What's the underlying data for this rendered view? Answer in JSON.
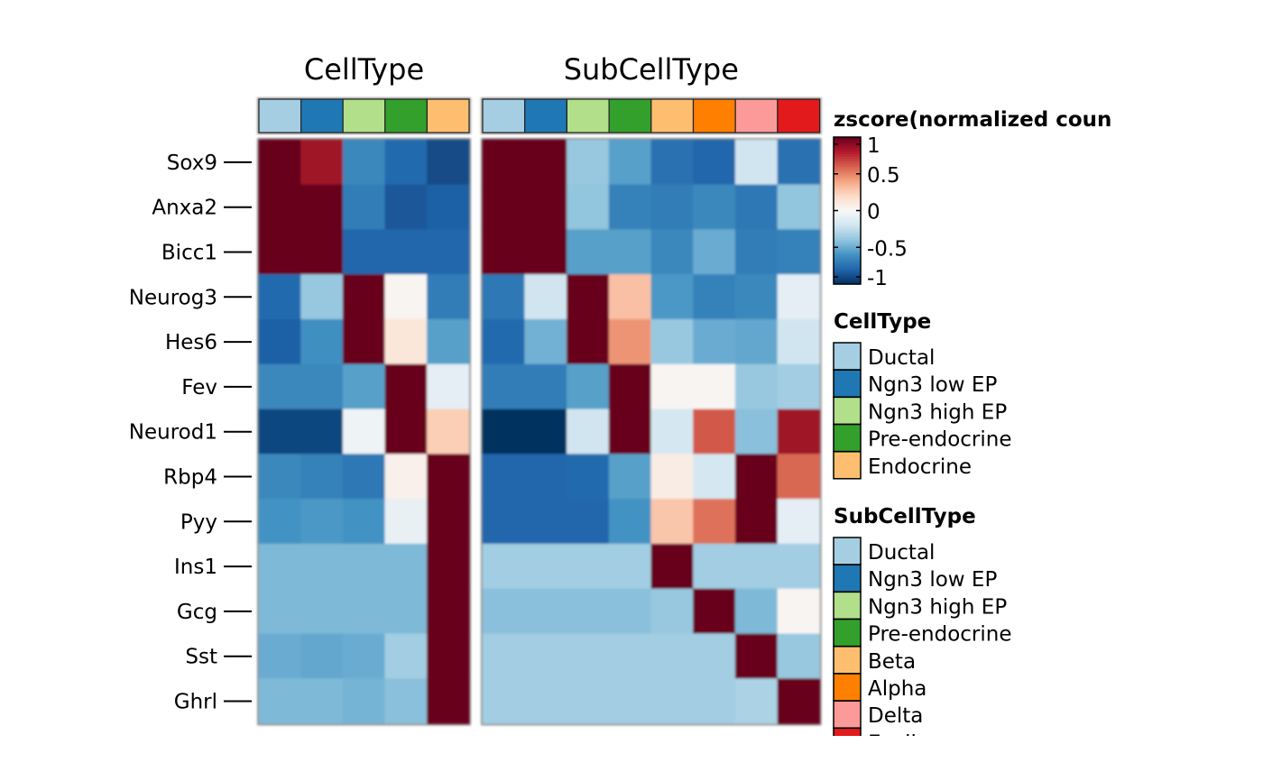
{
  "chart_data": {
    "type": "heatmap",
    "rows": [
      "Sox9",
      "Anxa2",
      "Bicc1",
      "Neurog3",
      "Hes6",
      "Fev",
      "Neurod1",
      "Rbp4",
      "Pyy",
      "Ins1",
      "Gcg",
      "Sst",
      "Ghrl"
    ],
    "color_scale": {
      "title": "zscore(normalized coun",
      "min": -1,
      "max": 1,
      "ticks": [
        "1",
        "0.5",
        "0",
        "-0.5",
        "-1"
      ],
      "tick_values": [
        1,
        0.5,
        0,
        -0.5,
        -1
      ],
      "colors": [
        "#053061",
        "#2166ac",
        "#4393c3",
        "#92c5de",
        "#d1e5f0",
        "#f7f7f7",
        "#fddbc7",
        "#f4a582",
        "#d6604d",
        "#b2182b",
        "#67001f"
      ]
    },
    "panels": [
      {
        "title": "CellType",
        "columns": [
          "Ductal",
          "Ngn3 low EP",
          "Ngn3 high EP",
          "Pre-endocrine",
          "Endocrine"
        ],
        "annotation_colors": [
          "#a6cee3",
          "#1f78b4",
          "#b2df8a",
          "#33a02c",
          "#fdbf6f"
        ],
        "values": [
          [
            1.0,
            0.85,
            -0.65,
            -0.78,
            -0.9
          ],
          [
            1.0,
            1.0,
            -0.7,
            -0.85,
            -0.82
          ],
          [
            1.0,
            1.0,
            -0.8,
            -0.8,
            -0.8
          ],
          [
            -0.78,
            -0.38,
            1.0,
            0.02,
            -0.7
          ],
          [
            -0.82,
            -0.62,
            1.0,
            0.12,
            -0.55
          ],
          [
            -0.65,
            -0.65,
            -0.55,
            1.0,
            -0.1
          ],
          [
            -0.92,
            -0.92,
            -0.05,
            1.0,
            0.25
          ],
          [
            -0.65,
            -0.68,
            -0.72,
            0.05,
            1.0
          ],
          [
            -0.6,
            -0.58,
            -0.6,
            -0.08,
            1.0
          ],
          [
            -0.45,
            -0.45,
            -0.45,
            -0.45,
            1.0
          ],
          [
            -0.45,
            -0.45,
            -0.45,
            -0.45,
            1.0
          ],
          [
            -0.5,
            -0.52,
            -0.5,
            -0.35,
            1.0
          ],
          [
            -0.45,
            -0.45,
            -0.47,
            -0.42,
            1.0
          ]
        ]
      },
      {
        "title": "SubCellType",
        "columns": [
          "Ductal",
          "Ngn3 low EP",
          "Ngn3 high EP",
          "Pre-endocrine",
          "Beta",
          "Alpha",
          "Delta",
          "Epsilon"
        ],
        "annotation_colors": [
          "#a6cee3",
          "#1f78b4",
          "#b2df8a",
          "#33a02c",
          "#fdbf6f",
          "#ff7f00",
          "#fb9a99",
          "#e31a1c"
        ],
        "values": [
          [
            1.0,
            1.0,
            -0.38,
            -0.55,
            -0.75,
            -0.8,
            -0.2,
            -0.75
          ],
          [
            1.0,
            1.0,
            -0.4,
            -0.68,
            -0.7,
            -0.65,
            -0.72,
            -0.4
          ],
          [
            1.0,
            1.0,
            -0.55,
            -0.55,
            -0.65,
            -0.5,
            -0.7,
            -0.68
          ],
          [
            -0.72,
            -0.2,
            1.0,
            0.3,
            -0.58,
            -0.68,
            -0.65,
            -0.1
          ],
          [
            -0.78,
            -0.48,
            1.0,
            0.45,
            -0.38,
            -0.5,
            -0.52,
            -0.2
          ],
          [
            -0.7,
            -0.7,
            -0.55,
            1.0,
            0.02,
            0.02,
            -0.38,
            -0.35
          ],
          [
            -1.0,
            -1.0,
            -0.2,
            1.0,
            -0.18,
            0.62,
            -0.42,
            0.85
          ],
          [
            -0.8,
            -0.8,
            -0.78,
            -0.55,
            0.08,
            -0.18,
            1.0,
            0.58
          ],
          [
            -0.8,
            -0.8,
            -0.8,
            -0.6,
            0.28,
            0.55,
            1.0,
            -0.1
          ],
          [
            -0.35,
            -0.35,
            -0.35,
            -0.35,
            1.0,
            -0.35,
            -0.35,
            -0.35
          ],
          [
            -0.42,
            -0.42,
            -0.42,
            -0.42,
            -0.38,
            1.0,
            -0.45,
            0.02
          ],
          [
            -0.35,
            -0.35,
            -0.35,
            -0.35,
            -0.35,
            -0.35,
            1.0,
            -0.38
          ],
          [
            -0.35,
            -0.35,
            -0.35,
            -0.35,
            -0.35,
            -0.35,
            -0.32,
            1.0
          ]
        ]
      }
    ],
    "legends": [
      {
        "title": "CellType",
        "entries": [
          {
            "label": "Ductal",
            "color": "#a6cee3"
          },
          {
            "label": "Ngn3 low EP",
            "color": "#1f78b4"
          },
          {
            "label": "Ngn3 high EP",
            "color": "#b2df8a"
          },
          {
            "label": "Pre-endocrine",
            "color": "#33a02c"
          },
          {
            "label": "Endocrine",
            "color": "#fdbf6f"
          }
        ]
      },
      {
        "title": "SubCellType",
        "entries": [
          {
            "label": "Ductal",
            "color": "#a6cee3"
          },
          {
            "label": "Ngn3 low EP",
            "color": "#1f78b4"
          },
          {
            "label": "Ngn3 high EP",
            "color": "#b2df8a"
          },
          {
            "label": "Pre-endocrine",
            "color": "#33a02c"
          },
          {
            "label": "Beta",
            "color": "#fdbf6f"
          },
          {
            "label": "Alpha",
            "color": "#ff7f00"
          },
          {
            "label": "Delta",
            "color": "#fb9a99"
          },
          {
            "label": "Epsilon",
            "color": "#e31a1c"
          }
        ]
      }
    ]
  }
}
